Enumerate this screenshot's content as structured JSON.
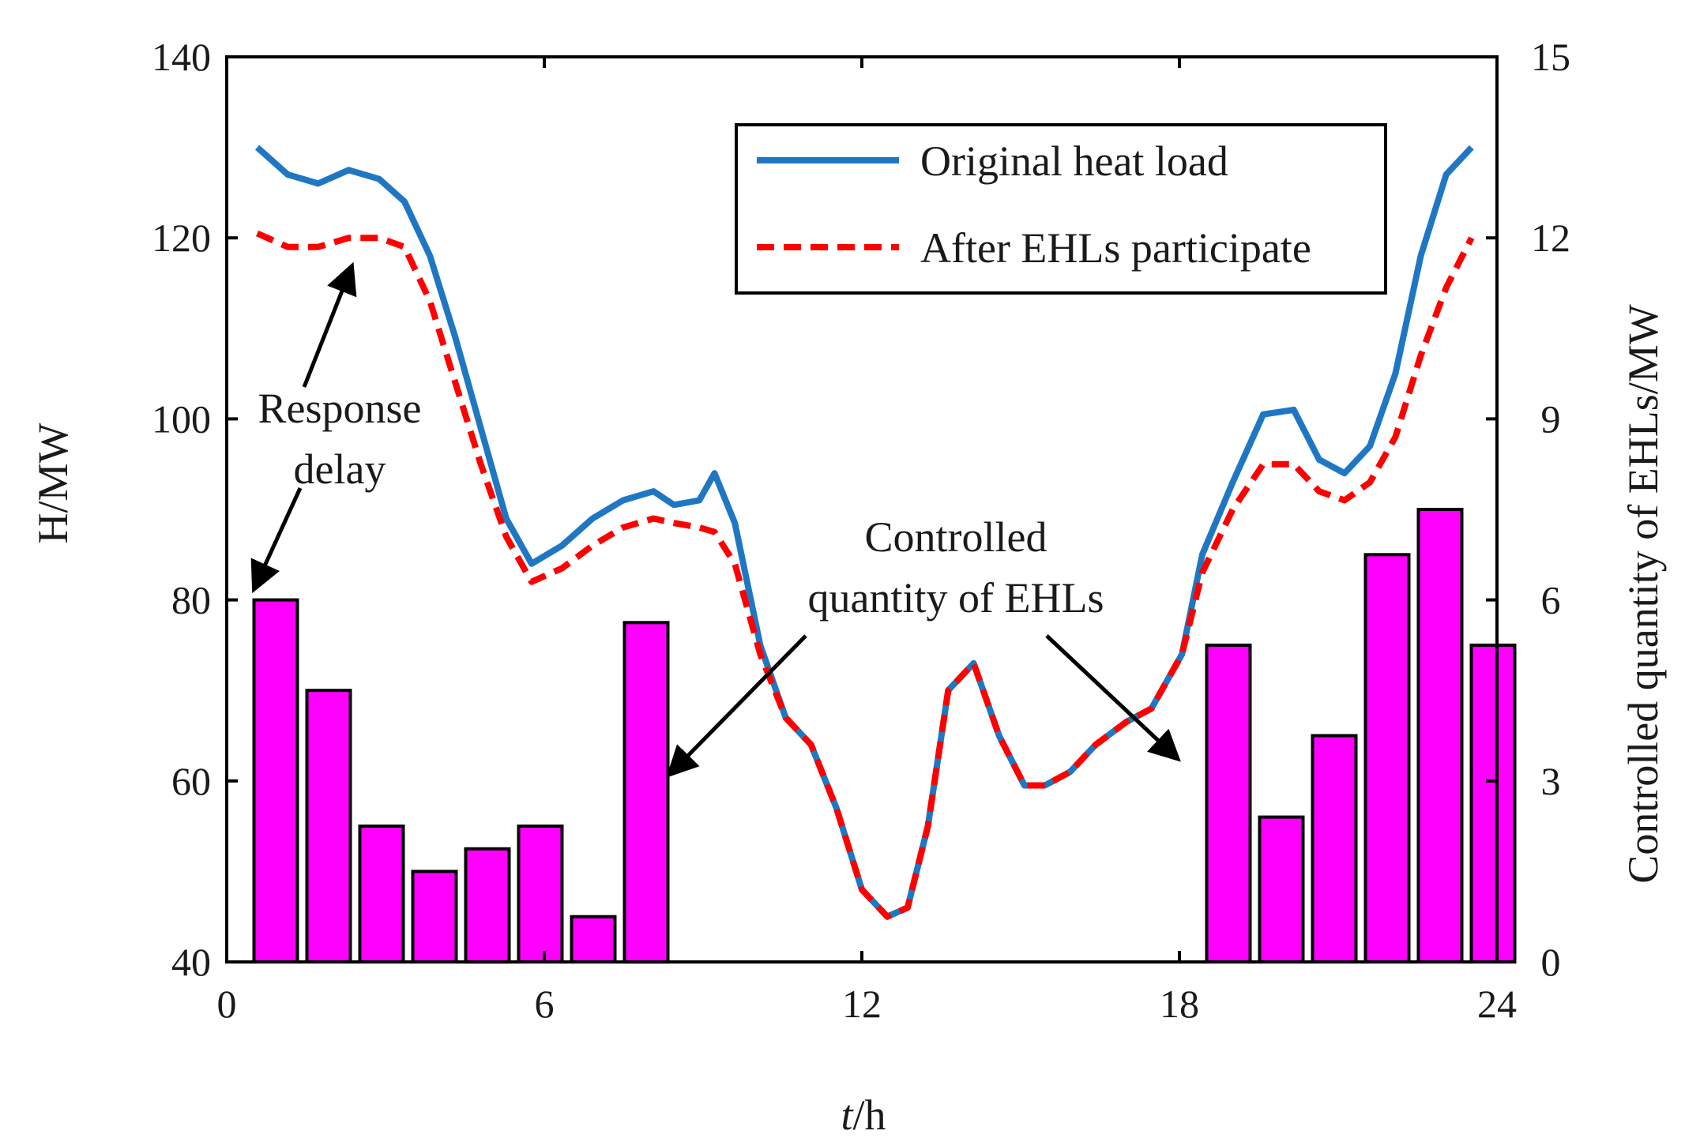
{
  "chart_data": {
    "type": "bar+line",
    "xlabel_italic": "t",
    "xlabel_unit": "/h",
    "ylabel": "H/MW",
    "y2label": "Controlled quantity of EHLs/MW",
    "xlim": [
      0,
      24
    ],
    "ylim": [
      40,
      140
    ],
    "y2lim": [
      0,
      15
    ],
    "xticks": [
      "0",
      "6",
      "12",
      "18",
      "24"
    ],
    "yticks": [
      "40",
      "60",
      "80",
      "100",
      "120",
      "140"
    ],
    "y2ticks": [
      "0",
      "3",
      "6",
      "9",
      "12",
      "15"
    ],
    "legend": {
      "position": "top-right",
      "entries": [
        "Original heat load",
        "After EHLs participate"
      ]
    },
    "colors": {
      "original": "#1f77c4",
      "after": "#ff0000",
      "bars": "#ff00ff",
      "bar_edge": "#000000"
    },
    "bars": {
      "name": "Controlled quantity of EHLs",
      "x": [
        1,
        2,
        3,
        4,
        5,
        6,
        7,
        8,
        19,
        20,
        21,
        22,
        23,
        24
      ],
      "values": [
        6.0,
        4.5,
        2.25,
        1.5,
        1.875,
        2.25,
        0.75,
        5.625,
        5.25,
        2.4,
        3.75,
        6.75,
        7.5,
        5.25
      ]
    },
    "series": [
      {
        "name": "Original heat load",
        "x": [
          0.6,
          1.2,
          1.8,
          2.4,
          3.0,
          3.5,
          4.0,
          4.5,
          5.0,
          5.5,
          6.0,
          6.6,
          7.2,
          7.8,
          8.4,
          8.8,
          9.3,
          9.6,
          10.0,
          10.5,
          11.0,
          11.5,
          12.0,
          12.5,
          13.0,
          13.4,
          13.8,
          14.2,
          14.7,
          15.2,
          15.7,
          16.1,
          16.6,
          17.1,
          17.7,
          18.2,
          18.8,
          19.2,
          19.8,
          20.4,
          21.0,
          21.5,
          22.0,
          22.5,
          23.0,
          23.5,
          24.0,
          24.5
        ],
        "values": [
          130,
          127,
          126,
          127.5,
          126.5,
          124,
          118,
          109,
          99,
          89,
          84,
          86,
          89,
          91,
          92,
          90.5,
          91,
          94,
          88.5,
          75,
          67,
          64,
          57,
          48,
          45,
          46,
          55,
          70,
          73,
          65,
          59.5,
          59.5,
          61,
          64,
          66.5,
          68,
          74,
          85,
          93,
          100.5,
          101,
          95.5,
          94,
          97,
          105,
          118,
          127,
          130
        ]
      },
      {
        "name": "After EHLs participate",
        "x": [
          0.6,
          1.2,
          1.8,
          2.4,
          3.0,
          3.5,
          4.0,
          4.5,
          5.0,
          5.5,
          6.0,
          6.6,
          7.2,
          7.8,
          8.4,
          8.8,
          9.3,
          9.6,
          10.0,
          10.5,
          11.0,
          11.5,
          12.0,
          12.5,
          13.0,
          13.4,
          13.8,
          14.2,
          14.7,
          15.2,
          15.7,
          16.1,
          16.6,
          17.1,
          17.7,
          18.2,
          18.8,
          19.2,
          19.8,
          20.4,
          21.0,
          21.5,
          22.0,
          22.5,
          23.0,
          23.5,
          24.0,
          24.5
        ],
        "values": [
          120.5,
          119,
          119,
          120,
          120,
          119,
          113,
          104,
          95,
          87,
          82,
          83.5,
          86,
          88,
          89,
          88.5,
          88,
          87.5,
          84,
          74,
          67,
          64,
          57,
          48,
          45,
          46,
          55,
          70,
          73,
          65,
          59.5,
          59.5,
          61,
          64,
          66.5,
          68,
          74,
          83,
          90,
          95,
          95,
          92,
          91,
          93,
          98,
          107,
          114.5,
          120
        ]
      }
    ],
    "annotations": {
      "response_delay": [
        "Response",
        "delay"
      ],
      "controlled_quantity": [
        "Controlled",
        "quantity of EHLs"
      ]
    }
  }
}
